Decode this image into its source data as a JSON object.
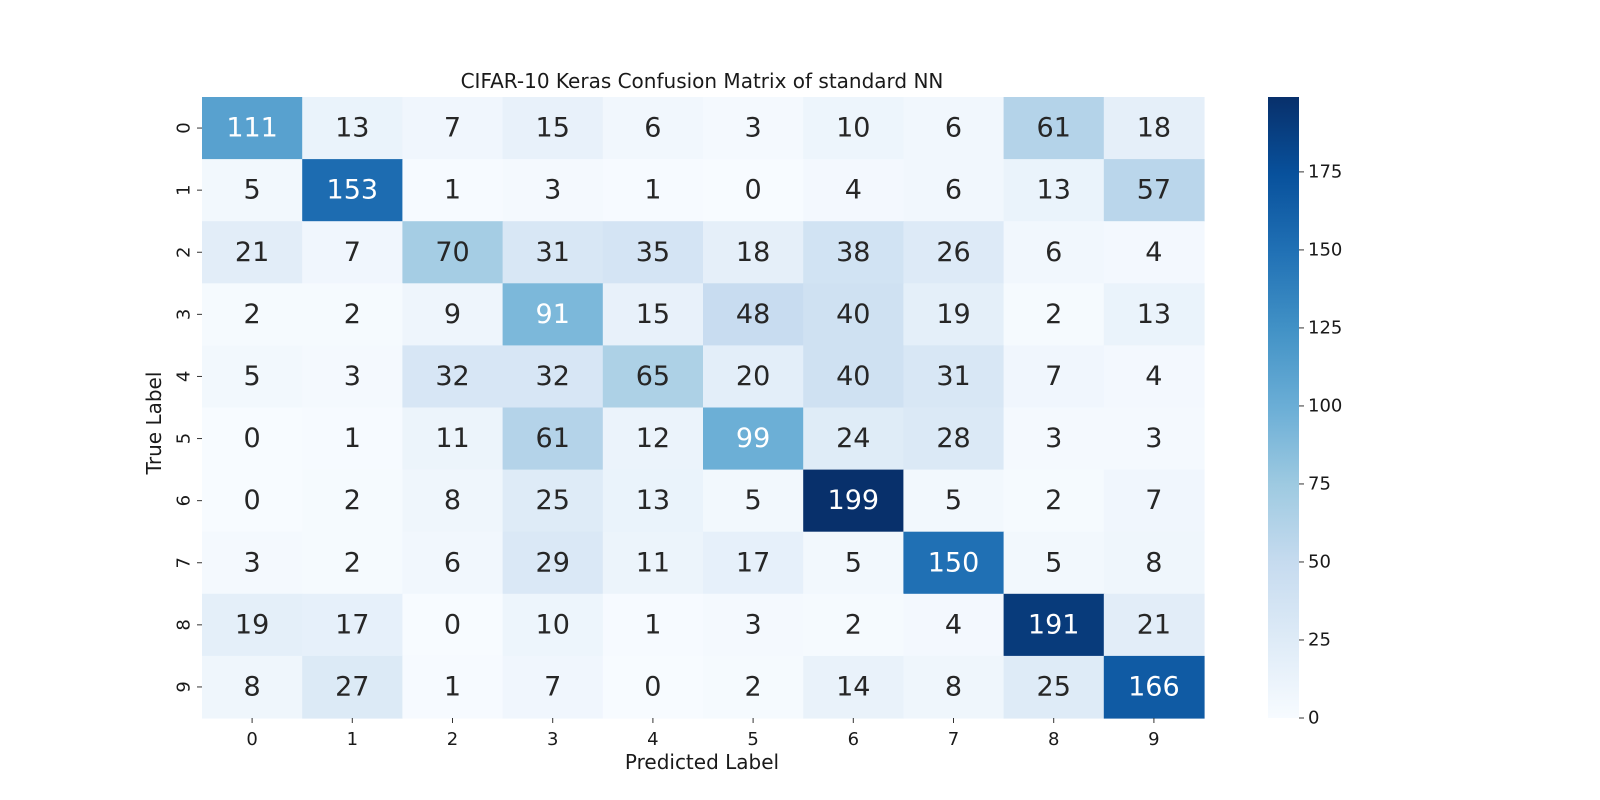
{
  "chart_data": {
    "type": "heatmap",
    "title": "CIFAR-10 Keras Confusion Matrix of standard NN",
    "xlabel": "Predicted Label",
    "ylabel": "True Label",
    "x_categories": [
      "0",
      "1",
      "2",
      "3",
      "4",
      "5",
      "6",
      "7",
      "8",
      "9"
    ],
    "y_categories": [
      "0",
      "1",
      "2",
      "3",
      "4",
      "5",
      "6",
      "7",
      "8",
      "9"
    ],
    "values": [
      [
        111,
        13,
        7,
        15,
        6,
        3,
        10,
        6,
        61,
        18
      ],
      [
        5,
        153,
        1,
        3,
        1,
        0,
        4,
        6,
        13,
        57
      ],
      [
        21,
        7,
        70,
        31,
        35,
        18,
        38,
        26,
        6,
        4
      ],
      [
        2,
        2,
        9,
        91,
        15,
        48,
        40,
        19,
        2,
        13
      ],
      [
        5,
        3,
        32,
        32,
        65,
        20,
        40,
        31,
        7,
        4
      ],
      [
        0,
        1,
        11,
        61,
        12,
        99,
        24,
        28,
        3,
        3
      ],
      [
        0,
        2,
        8,
        25,
        13,
        5,
        199,
        5,
        2,
        7
      ],
      [
        3,
        2,
        6,
        29,
        11,
        17,
        5,
        150,
        5,
        8
      ],
      [
        19,
        17,
        0,
        10,
        1,
        3,
        2,
        4,
        191,
        21
      ],
      [
        8,
        27,
        1,
        7,
        0,
        2,
        14,
        8,
        25,
        166
      ]
    ],
    "colormap": "Blues",
    "colorbar": {
      "min": 0,
      "max": 199,
      "ticks": [
        "0",
        "25",
        "50",
        "75",
        "100",
        "125",
        "150",
        "175"
      ],
      "placement": "right"
    },
    "grid": false
  }
}
